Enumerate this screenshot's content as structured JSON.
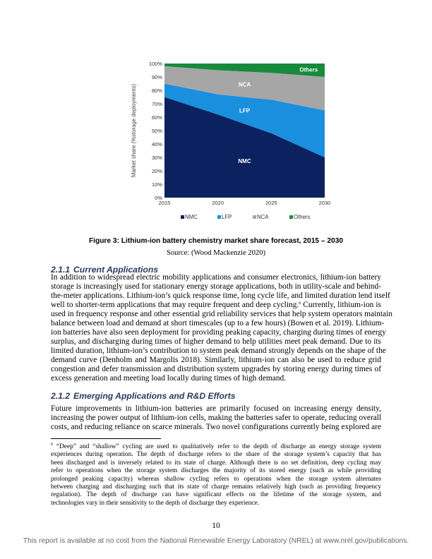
{
  "chart_data": {
    "type": "area",
    "stacked": true,
    "x": [
      2015,
      2020,
      2025,
      2030
    ],
    "ylabel": "Market share (%storage deployments)",
    "ylim": [
      0,
      100
    ],
    "yticks": [
      "0%",
      "10%",
      "20%",
      "30%",
      "40%",
      "50%",
      "60%",
      "70%",
      "80%",
      "90%",
      "100%"
    ],
    "xticks": [
      "2015",
      "2020",
      "2025",
      "2030"
    ],
    "grid": false,
    "legend_position": "bottom",
    "series": [
      {
        "name": "NMC",
        "values": [
          75,
          62,
          48,
          30
        ],
        "color": "#0b2160"
      },
      {
        "name": "LFP",
        "values": [
          10,
          15,
          25,
          35
        ],
        "color": "#1a8fde"
      },
      {
        "name": "NCA",
        "values": [
          13,
          18,
          20,
          25
        ],
        "color": "#a6a6a6"
      },
      {
        "name": "Others",
        "values": [
          2,
          5,
          7,
          10
        ],
        "color": "#178a3c"
      }
    ]
  },
  "figure": {
    "caption": "Figure 3: Lithium-ion battery chemistry market share forecast, 2015 – 2030",
    "source": "Source: (Wood Mackenzie 2020)"
  },
  "section1": {
    "number": "2.1.1",
    "title": "Current Applications",
    "lines": [
      "In addition to widespread electric mobility applications and consumer electronics, lithium-ion battery",
      "storage is increasingly used for stationary energy storage applications, both in utility-scale and behind-",
      "the-meter applications. Lithium-ion’s quick response time, long cycle life, and limited duration lend itself",
      "well to shorter-term applications that may require frequent and deep cycling.",
      "used in frequency response and other essential grid reliability services that help system operators maintain",
      "balance between load and demand at short timescales (up to a few hours) (Bowen et al. 2019). Lithium-",
      "ion batteries have also seen deployment for providing peaking capacity, charging during times of energy",
      "surplus, and discharging during times of higher demand to help utilities meet peak demand. Due to its",
      "limited duration, lithium-ion’s contribution to system peak demand strongly depends on the shape of the",
      "demand curve (Denholm and Margolis 2018). Similarly, lithium-ion can also be used to reduce grid",
      "congestion and defer transmission and distribution system upgrades by storing energy during times of",
      "excess generation and meeting load locally during times of high demand."
    ],
    "footnote_ref": "6",
    "line4_after_ref": " Currently, lithium-ion is"
  },
  "section2": {
    "number": "2.1.2",
    "title": "Emerging Applications and R&D Efforts",
    "lines": [
      "Future improvements in lithium-ion batteries are primarily focused on increasing energy density,",
      "increasing the power output of lithium-ion cells, making the batteries safer to operate, reducing overall",
      "costs, and reducing reliance on scarce minerals. Two novel configurations currently being explored are"
    ]
  },
  "footnote": {
    "mark": "6",
    "lines": [
      " “Deep” and “shallow” cycling are used to qualitatively refer to the depth of discharge an energy storage system",
      "experiences during operation. The depth of discharge refers to the share of the storage system’s capacity that has",
      "been discharged and is inversely related to its state of charge. Although there is no set definition, deep cycling may",
      "refer to operations when the storage system discharges the majority of its stored energy (such as while providing",
      "prolonged peaking capacity) whereas shallow cycling refers to operations when the storage system alternates",
      "between charging and discharging such that its state of charge remains relatively high (such as providing frequency",
      "regulation). The depth of discharge can have significant effects on the lifetime of the storage system, and",
      "technologies vary in their sensitivity to the depth of discharge they experience."
    ]
  },
  "page_number": "10",
  "footer": "This report is available at no cost from the National Renewable Energy Laboratory (NREL) at www.nrel.gov/publications."
}
